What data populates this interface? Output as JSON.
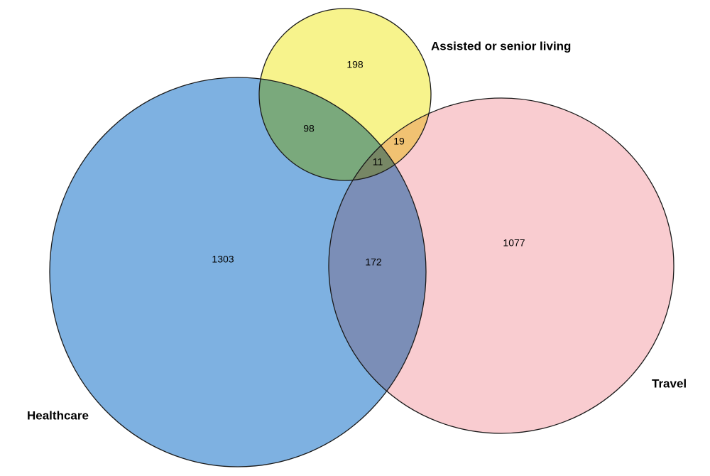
{
  "chart_data": {
    "type": "venn",
    "sets": [
      {
        "name": "Healthcare",
        "color": "#7eb1e1"
      },
      {
        "name": "Travel",
        "color": "#f9ccd0"
      },
      {
        "name": "Assisted or senior living",
        "color": "#f7f38c"
      }
    ],
    "values": [
      1303,
      1077,
      198,
      98,
      19,
      11,
      172
    ]
  }
}
